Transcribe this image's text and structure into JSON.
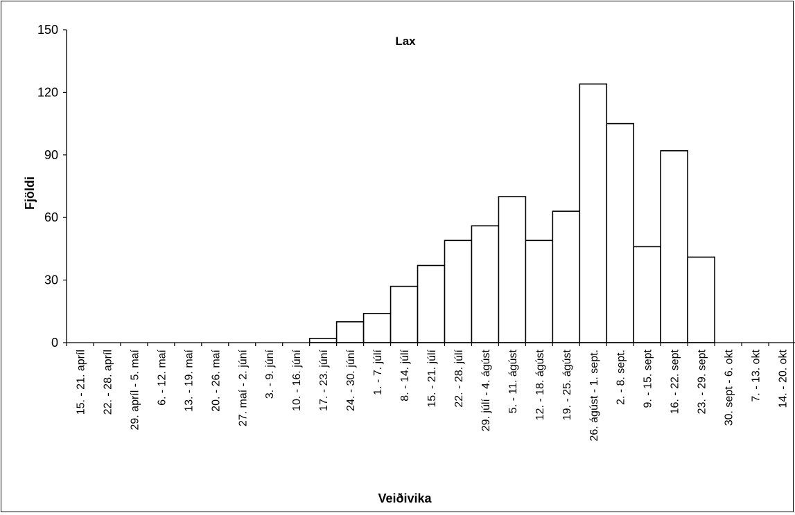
{
  "chart_data": {
    "type": "bar",
    "title": "Lax",
    "xlabel": "Veiðivika",
    "ylabel": "Fjöldi",
    "ylim": [
      0,
      150
    ],
    "yticks": [
      0,
      30,
      60,
      90,
      120,
      150
    ],
    "grid": false,
    "legend": "none",
    "categories": [
      "15. - 21. apríl",
      "22. - 28. apríl",
      "29. apríl - 5. maí",
      "6. - 12. maí",
      "13. - 19. maí",
      "20. - 26. maí",
      "27. maí - 2. júní",
      "3. - 9. júní",
      "10. - 16. júní",
      "17. - 23. júní",
      "24. - 30. júní",
      "1. - 7. júlí",
      "8. - 14. júlí",
      "15. - 21. júlí",
      "22. - 28. júlí",
      "29. júlí - 4. ágúst",
      "5. - 11. ágúst",
      "12. - 18. ágúst",
      "19. - 25. ágúst",
      "26. ágúst - 1. sept.",
      "2. - 8. sept.",
      "9. - 15. sept",
      "16. - 22. sept",
      "23. - 29. sept",
      "30. sept - 6. okt",
      "7. - 13. okt",
      "14. - 20. okt"
    ],
    "values": [
      0,
      0,
      0,
      0,
      0,
      0,
      0,
      0,
      0,
      2,
      10,
      14,
      27,
      37,
      49,
      56,
      70,
      49,
      63,
      124,
      105,
      46,
      92,
      41,
      0,
      0,
      0
    ],
    "bar_color": "#ffffff",
    "edge_color": "#000000"
  }
}
